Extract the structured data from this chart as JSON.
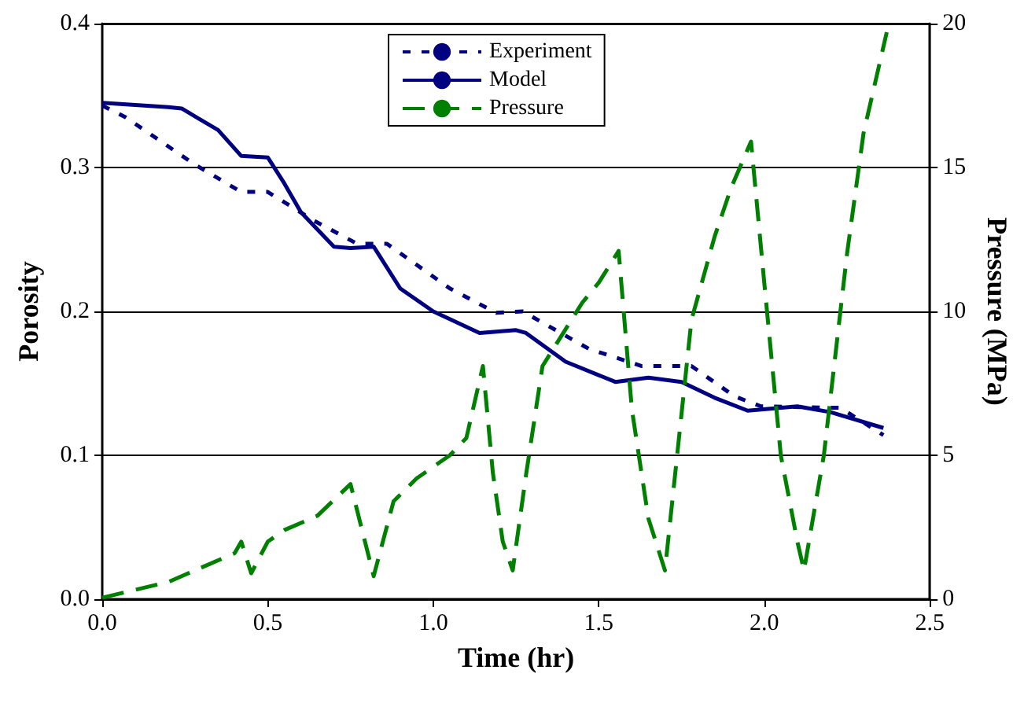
{
  "chart_data": {
    "type": "line",
    "xlabel": "Time (hr)",
    "ylabel": "Porosity",
    "y2label": "Pressure (MPa)",
    "xlim": [
      0,
      2.5
    ],
    "xticks": [
      {
        "value": 0,
        "label": "0.0"
      },
      0.5,
      {
        "value": 1,
        "label": "1.0"
      },
      1.5,
      {
        "value": 2,
        "label": "2.0"
      },
      2.5
    ],
    "ylim": [
      0,
      0.4
    ],
    "yticks": [
      {
        "value": 0,
        "label": "0.0"
      },
      0.1,
      0.2,
      0.3,
      0.4
    ],
    "y2lim": [
      0,
      20
    ],
    "y2ticks": [
      0,
      5,
      10,
      15,
      20
    ],
    "grid": "y",
    "legend": "top",
    "marker": "none",
    "series": [
      {
        "name": "Experiment",
        "color": "#000080",
        "line_style": "dotted",
        "x": [
          0,
          0.07,
          0.28,
          0.42,
          0.5,
          0.64,
          0.77,
          0.86,
          1.05,
          1.19,
          1.27,
          1.47,
          1.63,
          1.78,
          1.91,
          1.99,
          2.23,
          2.36
        ],
        "values": [
          0.343,
          0.335,
          0.302,
          0.283,
          0.283,
          0.263,
          0.247,
          0.247,
          0.216,
          0.199,
          0.2,
          0.174,
          0.162,
          0.162,
          0.141,
          0.134,
          0.133,
          0.114
        ]
      },
      {
        "name": "Model",
        "color": "#000080",
        "line_style": "solid",
        "x": [
          0,
          0.2,
          0.24,
          0.35,
          0.42,
          0.5,
          0.55,
          0.6,
          0.7,
          0.75,
          0.82,
          0.9,
          1.0,
          1.14,
          1.25,
          1.28,
          1.4,
          1.55,
          1.65,
          1.75,
          1.85,
          1.95,
          2.1,
          2.2,
          2.36
        ],
        "values": [
          0.345,
          0.342,
          0.341,
          0.326,
          0.308,
          0.307,
          0.289,
          0.269,
          0.245,
          0.244,
          0.245,
          0.216,
          0.2,
          0.185,
          0.187,
          0.185,
          0.165,
          0.151,
          0.154,
          0.151,
          0.14,
          0.131,
          0.134,
          0.13,
          0.119
        ]
      },
      {
        "name": "Pressure",
        "color": "#008000",
        "line_style": "dashed",
        "axis": "y2",
        "x": [
          0,
          0.2,
          0.4,
          0.42,
          0.45,
          0.5,
          0.55,
          0.65,
          0.75,
          0.82,
          0.88,
          0.95,
          1.05,
          1.1,
          1.15,
          1.18,
          1.21,
          1.24,
          1.28,
          1.33,
          1.45,
          1.5,
          1.56,
          1.6,
          1.65,
          1.7,
          1.78,
          1.85,
          1.9,
          1.96,
          2.0,
          2.05,
          2.1,
          2.12,
          2.18,
          2.25,
          2.3,
          2.37
        ],
        "values": [
          0.05,
          0.6,
          1.6,
          2.0,
          0.9,
          2.0,
          2.4,
          2.9,
          4.0,
          0.8,
          3.4,
          4.2,
          5.0,
          5.6,
          8.1,
          4.4,
          2.0,
          1.0,
          4.3,
          8.1,
          10.3,
          11,
          12.1,
          6.6,
          2.8,
          1.0,
          9.7,
          12.6,
          14.3,
          15.9,
          11,
          5.0,
          2.0,
          1.0,
          5,
          12,
          16.2,
          19.7
        ]
      }
    ]
  }
}
